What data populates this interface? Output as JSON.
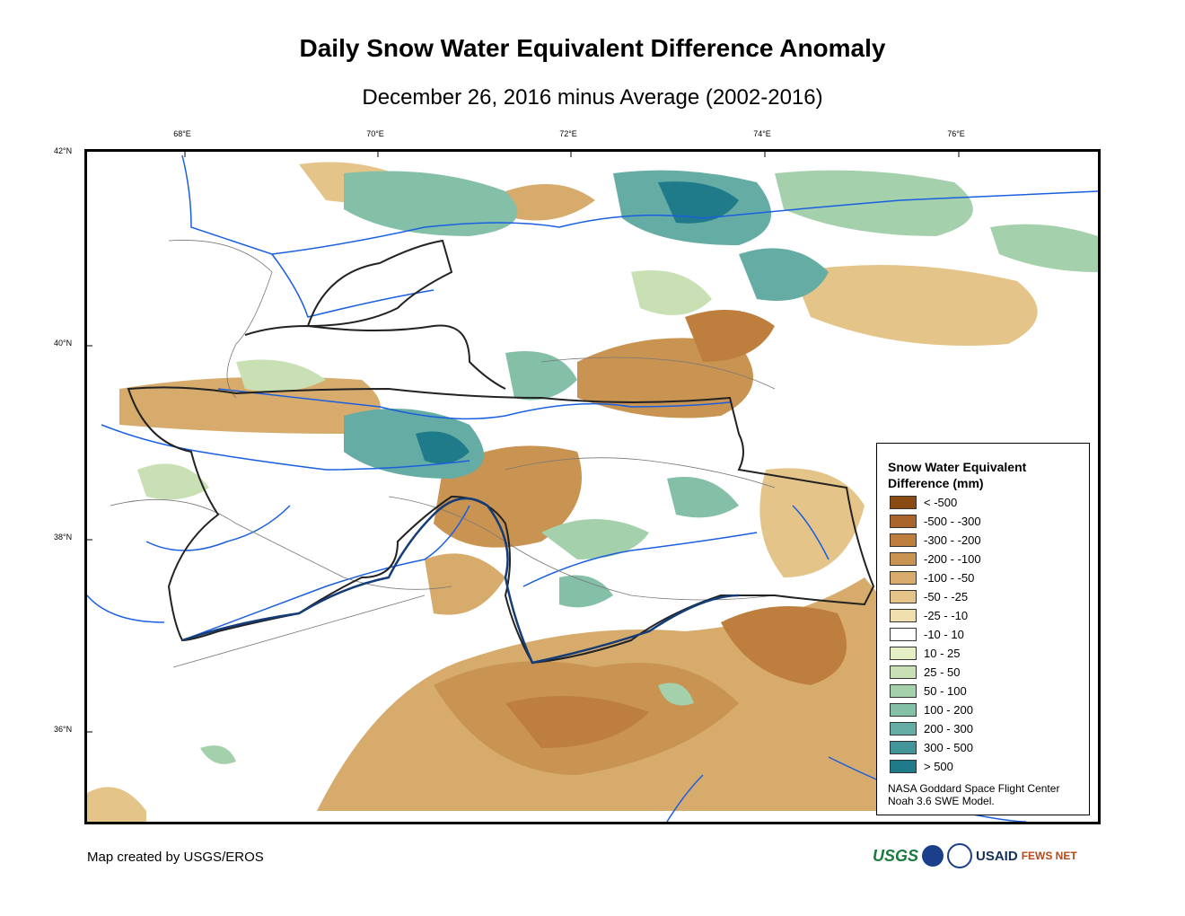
{
  "title": "Daily Snow Water Equivalent Difference Anomaly",
  "subtitle": "December 26, 2016 minus Average (2002-2016)",
  "longitudes": [
    "68°E",
    "70°E",
    "72°E",
    "74°E",
    "76°E"
  ],
  "latitudes": [
    "42°N",
    "40°N",
    "38°N",
    "36°N"
  ],
  "legend": {
    "title": "Snow Water Equivalent Difference (mm)",
    "classes": [
      {
        "label": "< -500",
        "color": "#8a4a14"
      },
      {
        "label": "-500 - -300",
        "color": "#a8642a"
      },
      {
        "label": "-300 - -200",
        "color": "#bd7e3e"
      },
      {
        "label": "-200 - -100",
        "color": "#c99352"
      },
      {
        "label": "-100 - -50",
        "color": "#d6ab6c"
      },
      {
        "label": "-50 - -25",
        "color": "#e4c488"
      },
      {
        "label": "-25 - -10",
        "color": "#f0dfae"
      },
      {
        "label": "-10 - 10",
        "color": "#ffffff"
      },
      {
        "label": "10 - 25",
        "color": "#e4efc6"
      },
      {
        "label": "25 - 50",
        "color": "#c8e0b4"
      },
      {
        "label": "50 - 100",
        "color": "#a4d0ac"
      },
      {
        "label": "100 - 200",
        "color": "#84c0a8"
      },
      {
        "label": "200 - 300",
        "color": "#64aca4"
      },
      {
        "label": "300 - 500",
        "color": "#44959a"
      },
      {
        "label": "> 500",
        "color": "#1f7b8a"
      }
    ],
    "credit_line1": "NASA Goddard Space Flight Center",
    "credit_line2": "Noah 3.6 SWE Model."
  },
  "footer": {
    "made_by": "Map created by USGS/EROS"
  },
  "logos": {
    "usgs": "USGS",
    "usaid": "USAID",
    "fews": "FEWS NET"
  },
  "colors": {
    "river": "#1a5fe0",
    "border": "#222222",
    "basin": "#777777"
  }
}
